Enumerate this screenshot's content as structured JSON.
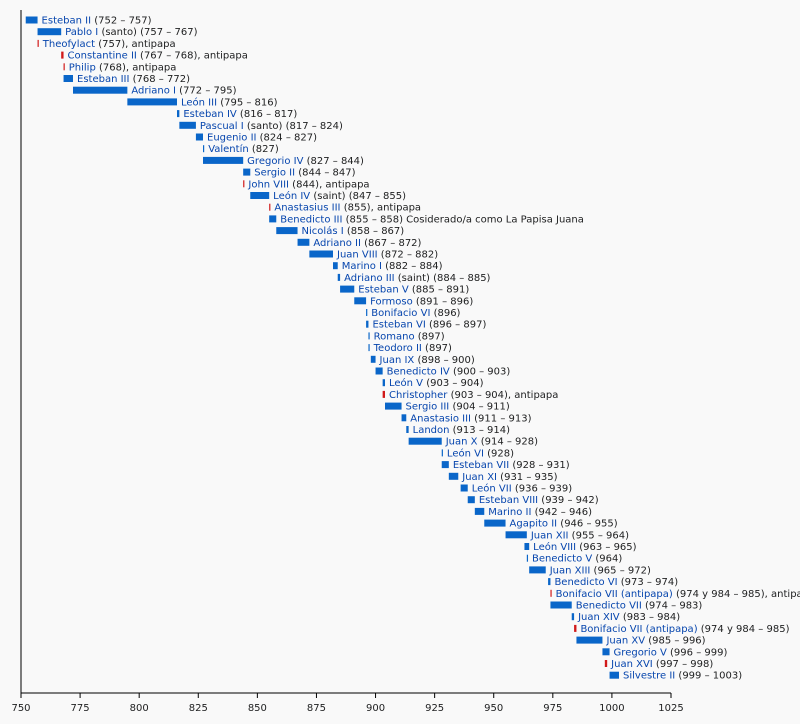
{
  "chart_data": {
    "type": "bar",
    "orientation": "horizontal-timeline",
    "xlim": [
      750,
      1025
    ],
    "xticks": [
      "750",
      "775",
      "800",
      "825",
      "850",
      "875",
      "900",
      "925",
      "950",
      "975",
      "1000",
      "1025"
    ],
    "colors": {
      "pope": "#0a66c9",
      "antipope": "#d11a1a",
      "name": "#0645ad",
      "text": "#202122"
    },
    "series": [
      {
        "name": "Esteban II",
        "note": " (752 – 757)",
        "start": 752,
        "end": 757,
        "antipope": false
      },
      {
        "name": "Pablo I",
        "note": " (santo) (757 – 767)",
        "start": 757,
        "end": 767,
        "antipope": false
      },
      {
        "name": "Theofylact",
        "note": " (757), antipapa",
        "start": 757,
        "end": 757.4,
        "antipope": true
      },
      {
        "name": "Constantine II",
        "note": " (767 – 768), antipapa",
        "start": 767,
        "end": 768,
        "antipope": true
      },
      {
        "name": "Philip",
        "note": " (768), antipapa",
        "start": 768,
        "end": 768.4,
        "antipope": true
      },
      {
        "name": "Esteban III",
        "note": " (768 – 772)",
        "start": 768,
        "end": 772,
        "antipope": false
      },
      {
        "name": "Adriano I",
        "note": " (772 – 795)",
        "start": 772,
        "end": 795,
        "antipope": false
      },
      {
        "name": "León III",
        "note": " (795 – 816)",
        "start": 795,
        "end": 816,
        "antipope": false
      },
      {
        "name": "Esteban IV",
        "note": " (816 – 817)",
        "start": 816,
        "end": 817,
        "antipope": false
      },
      {
        "name": "Pascual I",
        "note": " (santo) (817 – 824)",
        "start": 817,
        "end": 824,
        "antipope": false
      },
      {
        "name": "Eugenio II",
        "note": " (824 – 827)",
        "start": 824,
        "end": 827,
        "antipope": false
      },
      {
        "name": "Valentín",
        "note": " (827)",
        "start": 827,
        "end": 827.4,
        "antipope": false
      },
      {
        "name": "Gregorio IV",
        "note": " (827 – 844)",
        "start": 827,
        "end": 844,
        "antipope": false
      },
      {
        "name": "Sergio II",
        "note": " (844 – 847)",
        "start": 844,
        "end": 847,
        "antipope": false
      },
      {
        "name": "John VIII",
        "note": " (844), antipapa",
        "start": 844,
        "end": 844.4,
        "antipope": true
      },
      {
        "name": "León IV",
        "note": " (saint) (847 – 855)",
        "start": 847,
        "end": 855,
        "antipope": false
      },
      {
        "name": "Anastasius III",
        "note": " (855), antipapa",
        "start": 855,
        "end": 855.4,
        "antipope": true
      },
      {
        "name": "Benedicto III",
        "note": " (855 – 858) Cosiderado/a como La Papisa Juana",
        "start": 855,
        "end": 858,
        "antipope": false
      },
      {
        "name": "Nicolás I",
        "note": " (858 – 867)",
        "start": 858,
        "end": 867,
        "antipope": false
      },
      {
        "name": "Adriano II",
        "note": " (867 – 872)",
        "start": 867,
        "end": 872,
        "antipope": false
      },
      {
        "name": "Juan VIII",
        "note": " (872 – 882)",
        "start": 872,
        "end": 882,
        "antipope": false
      },
      {
        "name": "Marino I",
        "note": " (882 – 884)",
        "start": 882,
        "end": 884,
        "antipope": false
      },
      {
        "name": "Adriano III",
        "note": " (saint) (884 – 885)",
        "start": 884,
        "end": 885,
        "antipope": false
      },
      {
        "name": "Esteban V",
        "note": " (885 – 891)",
        "start": 885,
        "end": 891,
        "antipope": false
      },
      {
        "name": "Formoso",
        "note": " (891 – 896)",
        "start": 891,
        "end": 896,
        "antipope": false
      },
      {
        "name": "Bonifacio VI",
        "note": " (896)",
        "start": 896,
        "end": 896.4,
        "antipope": false
      },
      {
        "name": "Esteban VI",
        "note": " (896 – 897)",
        "start": 896,
        "end": 897,
        "antipope": false
      },
      {
        "name": "Romano",
        "note": " (897)",
        "start": 897,
        "end": 897.4,
        "antipope": false
      },
      {
        "name": "Teodoro II",
        "note": " (897)",
        "start": 897,
        "end": 897.4,
        "antipope": false
      },
      {
        "name": "Juan IX",
        "note": " (898 – 900)",
        "start": 898,
        "end": 900,
        "antipope": false
      },
      {
        "name": "Benedicto IV",
        "note": " (900 – 903)",
        "start": 900,
        "end": 903,
        "antipope": false
      },
      {
        "name": "León V",
        "note": " (903 – 904)",
        "start": 903,
        "end": 904,
        "antipope": false
      },
      {
        "name": "Christopher",
        "note": " (903 – 904), antipapa",
        "start": 903,
        "end": 904,
        "antipope": true
      },
      {
        "name": "Sergio III",
        "note": " (904 – 911)",
        "start": 904,
        "end": 911,
        "antipope": false
      },
      {
        "name": "Anastasio III",
        "note": " (911 – 913)",
        "start": 911,
        "end": 913,
        "antipope": false
      },
      {
        "name": "Landon",
        "note": " (913 – 914)",
        "start": 913,
        "end": 914,
        "antipope": false
      },
      {
        "name": "Juan X",
        "note": " (914 – 928)",
        "start": 914,
        "end": 928,
        "antipope": false
      },
      {
        "name": "León VI",
        "note": " (928)",
        "start": 928,
        "end": 928.4,
        "antipope": false
      },
      {
        "name": "Esteban VII",
        "note": " (928 – 931)",
        "start": 928,
        "end": 931,
        "antipope": false
      },
      {
        "name": "Juan XI",
        "note": " (931 – 935)",
        "start": 931,
        "end": 935,
        "antipope": false
      },
      {
        "name": "León VII",
        "note": " (936 – 939)",
        "start": 936,
        "end": 939,
        "antipope": false
      },
      {
        "name": "Esteban VIII",
        "note": " (939 – 942)",
        "start": 939,
        "end": 942,
        "antipope": false
      },
      {
        "name": "Marino II",
        "note": " (942 – 946)",
        "start": 942,
        "end": 946,
        "antipope": false
      },
      {
        "name": "Agapito II",
        "note": " (946 – 955)",
        "start": 946,
        "end": 955,
        "antipope": false
      },
      {
        "name": "Juan XII",
        "note": " (955 – 964)",
        "start": 955,
        "end": 964,
        "antipope": false
      },
      {
        "name": "León VIII",
        "note": " (963 – 965)",
        "start": 963,
        "end": 965,
        "antipope": false
      },
      {
        "name": "Benedicto V",
        "note": " (964)",
        "start": 964,
        "end": 964.4,
        "antipope": false
      },
      {
        "name": "Juan XIII",
        "note": " (965 – 972)",
        "start": 965,
        "end": 972,
        "antipope": false
      },
      {
        "name": "Benedicto VI",
        "note": " (973 – 974)",
        "start": 973,
        "end": 974,
        "antipope": false
      },
      {
        "name": "Bonifacio VII (antipapa)",
        "note": " (974 y 984 – 985), antipapa",
        "start": 974,
        "end": 974.4,
        "antipope": true
      },
      {
        "name": "Benedicto VII",
        "note": " (974 – 983)",
        "start": 974,
        "end": 983,
        "antipope": false
      },
      {
        "name": "Juan XIV",
        "note": " (983 – 984)",
        "start": 983,
        "end": 984,
        "antipope": false
      },
      {
        "name": "Bonifacio VII (antipapa)",
        "note": " (974 y 984 – 985)",
        "start": 984,
        "end": 985,
        "antipope": true
      },
      {
        "name": "Juan XV",
        "note": " (985 – 996)",
        "start": 985,
        "end": 996,
        "antipope": false
      },
      {
        "name": "Gregorio V",
        "note": " (996 – 999)",
        "start": 996,
        "end": 999,
        "antipope": false
      },
      {
        "name": "Juan XVI",
        "note": " (997 – 998)",
        "start": 997,
        "end": 998,
        "antipope": true
      },
      {
        "name": "Silvestre II",
        "note": " (999 – 1003)",
        "start": 999,
        "end": 1003,
        "antipope": false
      }
    ]
  }
}
